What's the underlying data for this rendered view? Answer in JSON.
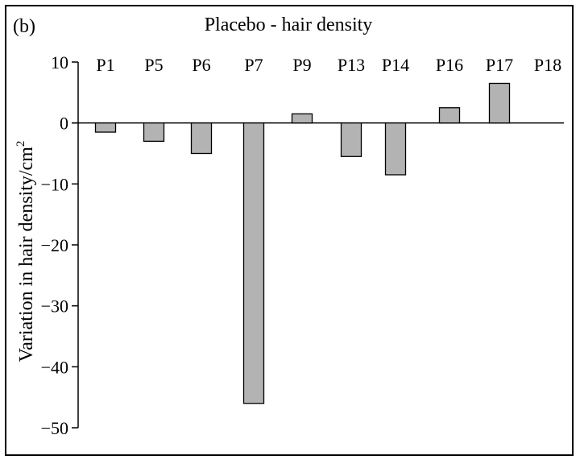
{
  "chart_data": {
    "type": "bar",
    "panel_label": "(b)",
    "title": "Placebo - hair density",
    "ylabel_main": "Variation in hair density/cm",
    "ylabel_sup": "2",
    "categories": [
      "P1",
      "P5",
      "P6",
      "P7",
      "P9",
      "P13",
      "P14",
      "P16",
      "P17",
      "P18"
    ],
    "values": [
      -1.5,
      -3,
      -5,
      -46,
      1.5,
      -5.5,
      -8.5,
      2.5,
      6.5,
      0
    ],
    "ylim": [
      -50,
      10
    ],
    "yticks": [
      10,
      0,
      -10,
      -20,
      -30,
      -40,
      -50
    ],
    "ytick_labels": [
      "10",
      "0",
      "−10",
      "−20",
      "−30",
      "−40",
      "−50"
    ],
    "grid": false,
    "legend": "none",
    "bar_color": "#b3b3b3",
    "bar_edge_color": "#000000"
  }
}
